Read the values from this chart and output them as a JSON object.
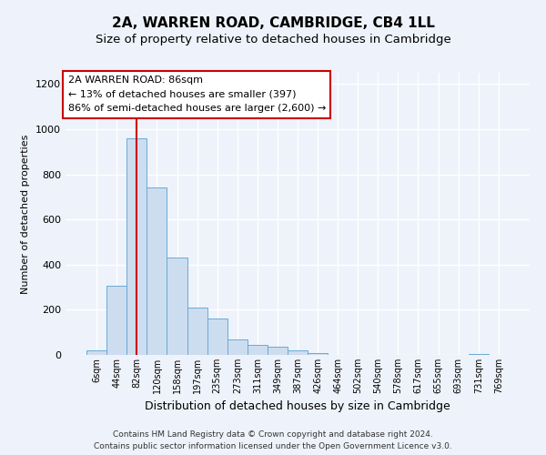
{
  "title": "2A, WARREN ROAD, CAMBRIDGE, CB4 1LL",
  "subtitle": "Size of property relative to detached houses in Cambridge",
  "xlabel": "Distribution of detached houses by size in Cambridge",
  "ylabel": "Number of detached properties",
  "bin_labels": [
    "6sqm",
    "44sqm",
    "82sqm",
    "120sqm",
    "158sqm",
    "197sqm",
    "235sqm",
    "273sqm",
    "311sqm",
    "349sqm",
    "387sqm",
    "426sqm",
    "464sqm",
    "502sqm",
    "540sqm",
    "578sqm",
    "617sqm",
    "655sqm",
    "693sqm",
    "731sqm",
    "769sqm"
  ],
  "bar_heights": [
    20,
    305,
    960,
    740,
    430,
    210,
    160,
    70,
    45,
    35,
    20,
    10,
    2,
    0,
    0,
    0,
    0,
    0,
    0,
    5,
    0
  ],
  "bar_color": "#ccddf0",
  "bar_edgecolor": "#6aaad4",
  "vline_x_index": 2,
  "vline_color": "#cc0000",
  "ylim": [
    0,
    1250
  ],
  "yticks": [
    0,
    200,
    400,
    600,
    800,
    1000,
    1200
  ],
  "annotation_title": "2A WARREN ROAD: 86sqm",
  "annotation_line1": "← 13% of detached houses are smaller (397)",
  "annotation_line2": "86% of semi-detached houses are larger (2,600) →",
  "annotation_box_edgecolor": "#cc0000",
  "annotation_box_facecolor": "#ffffff",
  "footer_line1": "Contains HM Land Registry data © Crown copyright and database right 2024.",
  "footer_line2": "Contains public sector information licensed under the Open Government Licence v3.0.",
  "bg_color": "#eef2fa",
  "plot_bg_color": "#eef2fa",
  "grid_color": "#ffffff",
  "title_fontsize": 11,
  "subtitle_fontsize": 9.5
}
